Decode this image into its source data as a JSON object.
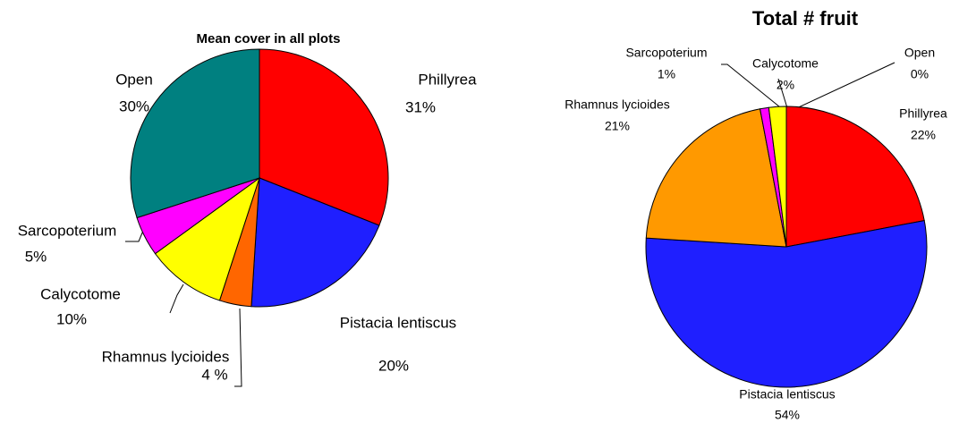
{
  "chart_data": [
    {
      "type": "pie",
      "title": "Mean cover in all plots",
      "categories": [
        "Phillyrea",
        "Pistacia lentiscus",
        "Rhamnus lycioides",
        "Calycotome",
        "Sarcopoterium",
        "Open"
      ],
      "values": [
        31,
        20,
        4,
        10,
        5,
        30
      ],
      "value_labels": [
        "31%",
        "20%",
        "4 %",
        "10%",
        "5%",
        "30%"
      ],
      "colors": [
        "#ff0000",
        "#1f1fff",
        "#ff6600",
        "#ffff00",
        "#ff00ff",
        "#008080"
      ]
    },
    {
      "type": "pie",
      "title": "Total # fruit",
      "categories": [
        "Open",
        "Phillyrea",
        "Pistacia lentiscus",
        "Rhamnus lycioides",
        "Sarcopoterium",
        "Calycotome"
      ],
      "values": [
        0,
        22,
        54,
        21,
        1,
        2
      ],
      "value_labels": [
        "0%",
        "22%",
        "54%",
        "21%",
        "1%",
        "2%"
      ],
      "colors": [
        "#006666",
        "#ff0000",
        "#1f1fff",
        "#ff9900",
        "#ff00ff",
        "#ffff00"
      ]
    }
  ]
}
